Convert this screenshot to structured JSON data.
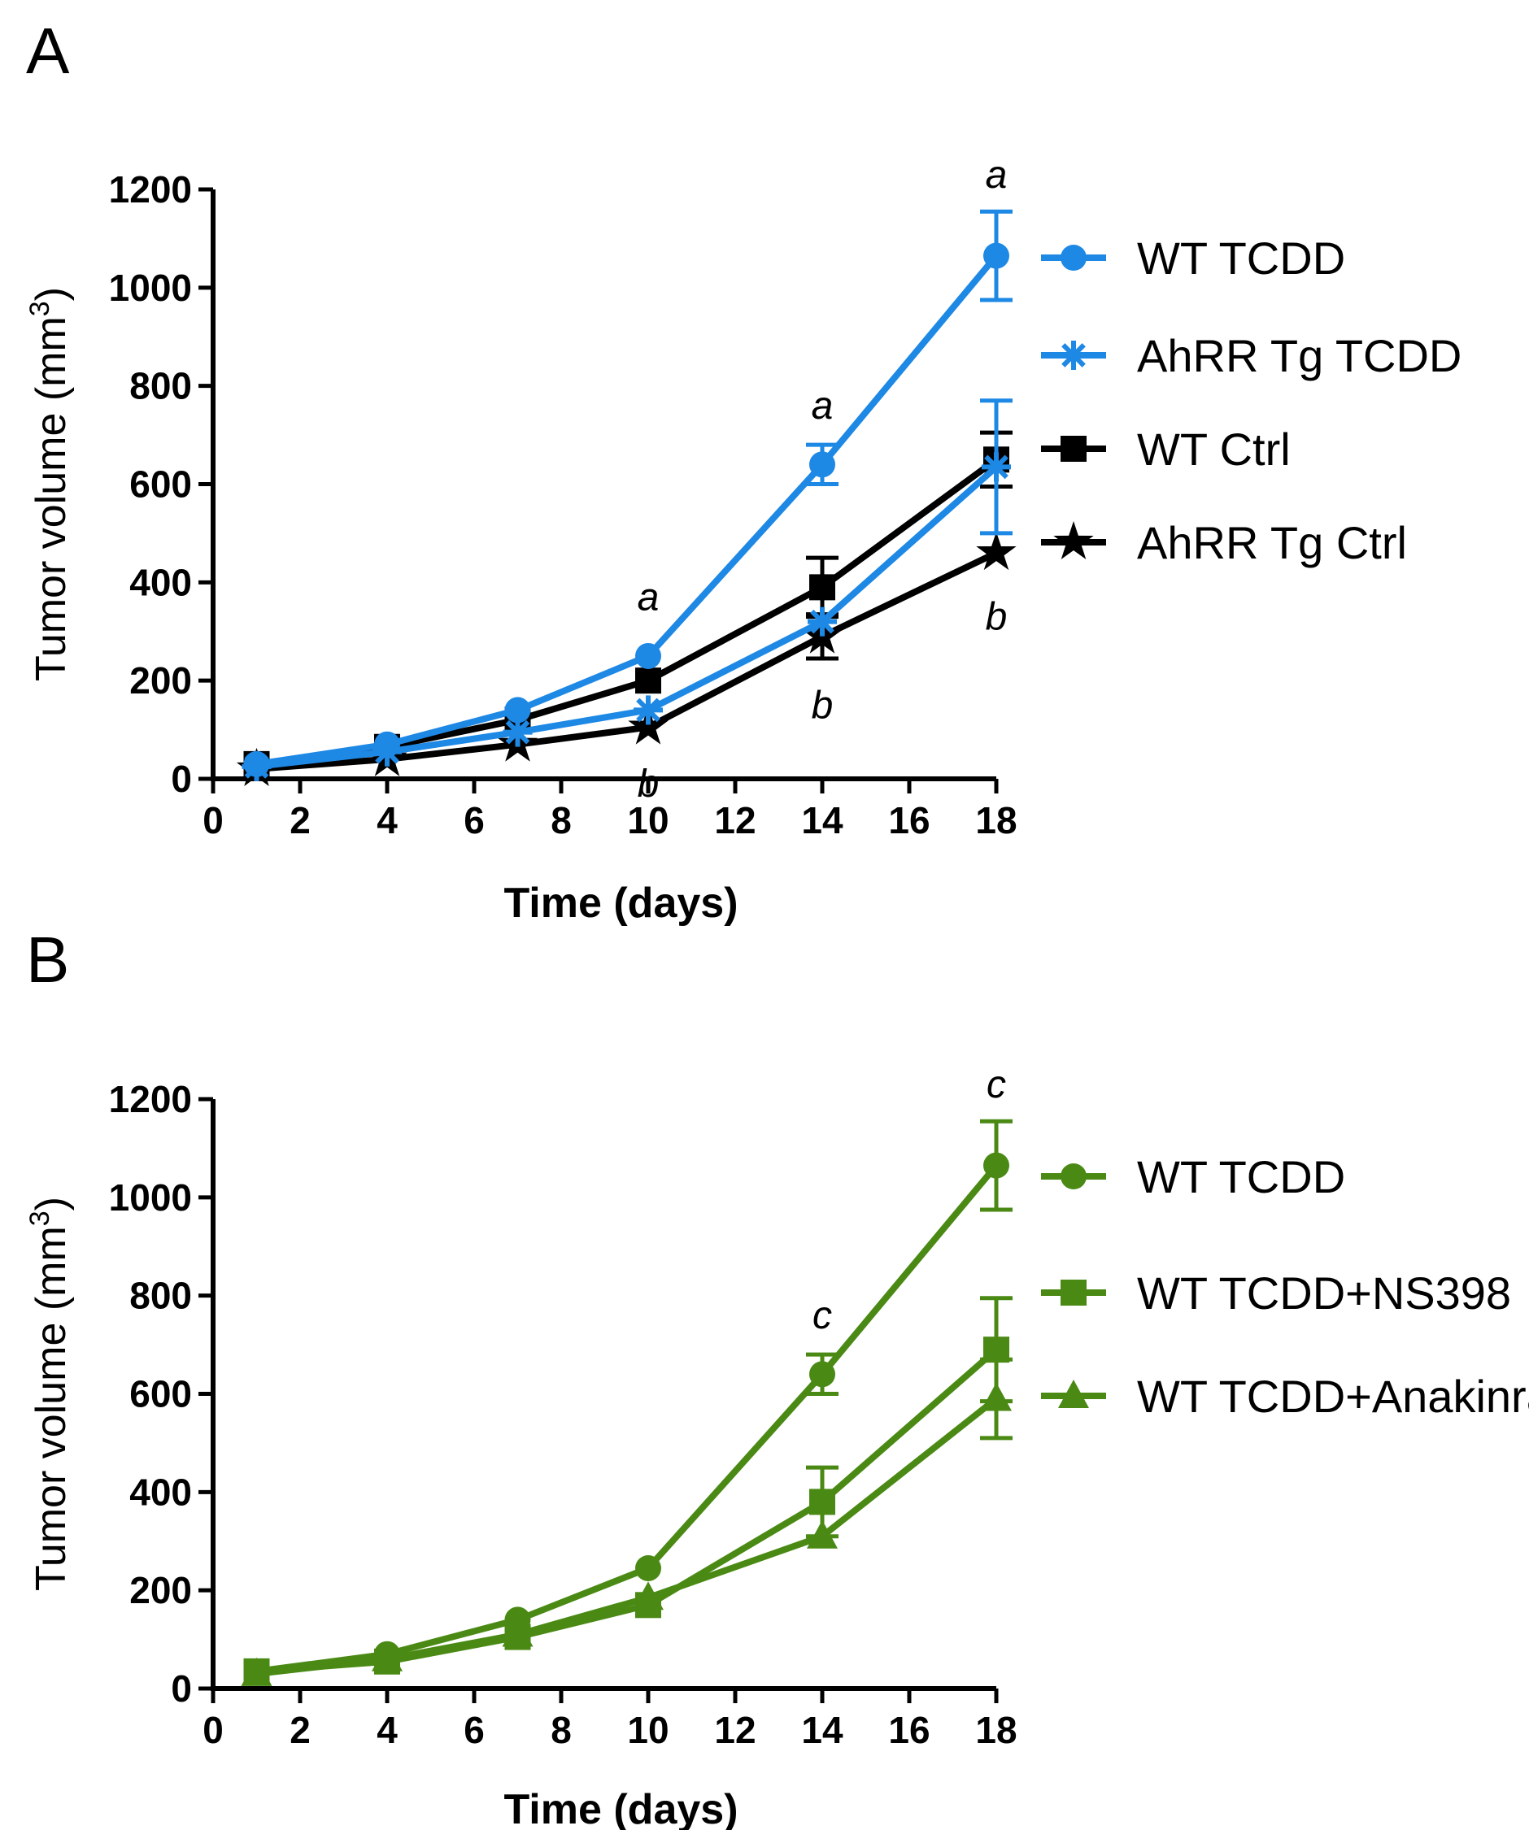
{
  "chart_data": [
    {
      "panel": "A",
      "type": "line",
      "title": "",
      "xlabel": "Time (days)",
      "ylabel": "Tumor volume (mm",
      "ylabel_sup": "3",
      "ylabel_close": ")",
      "xlim": [
        0,
        18
      ],
      "ylim": [
        0,
        1200
      ],
      "xticks": [
        0,
        2,
        4,
        6,
        8,
        10,
        12,
        14,
        16,
        18
      ],
      "yticks": [
        0,
        200,
        400,
        600,
        800,
        1000,
        1200
      ],
      "x": [
        1,
        4,
        7,
        10,
        14,
        18
      ],
      "series": [
        {
          "name": "WT Ctrl",
          "color": "#000000",
          "marker": "square",
          "values": [
            30,
            65,
            120,
            200,
            390,
            650
          ],
          "errors": [
            0,
            0,
            0,
            0,
            60,
            55
          ]
        },
        {
          "name": "AhRR Tg Ctrl",
          "color": "#000000",
          "marker": "star",
          "values": [
            20,
            40,
            70,
            105,
            290,
            460
          ],
          "errors": [
            0,
            0,
            0,
            0,
            45,
            0
          ]
        },
        {
          "name": "WT TCDD",
          "color": "#1e88e5",
          "marker": "circle",
          "values": [
            30,
            70,
            140,
            250,
            640,
            1065
          ],
          "errors": [
            0,
            0,
            0,
            0,
            40,
            90
          ]
        },
        {
          "name": "AhRR Tg TCDD",
          "color": "#1e88e5",
          "marker": "asterisk",
          "values": [
            25,
            55,
            95,
            140,
            320,
            635
          ],
          "errors": [
            0,
            0,
            0,
            0,
            0,
            135
          ]
        }
      ],
      "legend_order": [
        "WT TCDD",
        "AhRR Tg TCDD",
        "WT Ctrl",
        "AhRR Tg Ctrl"
      ],
      "annotations": [
        {
          "text": "a",
          "x": 10,
          "y": 370
        },
        {
          "text": "a",
          "x": 14,
          "y": 760
        },
        {
          "text": "a",
          "x": 18,
          "y": 1230
        },
        {
          "text": "b",
          "x": 10,
          "y": -10
        },
        {
          "text": "b",
          "x": 14,
          "y": 150
        },
        {
          "text": "b",
          "x": 18,
          "y": 330
        }
      ]
    },
    {
      "panel": "B",
      "type": "line",
      "title": "",
      "xlabel": "Time (days)",
      "ylabel": "Tumor volume  (mm",
      "ylabel_sup": "3",
      "ylabel_close": ")",
      "xlim": [
        0,
        18
      ],
      "ylim": [
        0,
        1200
      ],
      "xticks": [
        0,
        2,
        4,
        6,
        8,
        10,
        12,
        14,
        16,
        18
      ],
      "yticks": [
        0,
        200,
        400,
        600,
        800,
        1000,
        1200
      ],
      "x": [
        1,
        4,
        7,
        10,
        14,
        18
      ],
      "series": [
        {
          "name": "WT TCDD",
          "color": "#4a8a14",
          "marker": "circle",
          "values": [
            35,
            70,
            140,
            245,
            640,
            1065
          ],
          "errors": [
            0,
            0,
            0,
            0,
            40,
            90
          ]
        },
        {
          "name": "WT TCDD+NS398",
          "color": "#4a8a14",
          "marker": "square",
          "values": [
            35,
            55,
            105,
            170,
            380,
            690
          ],
          "errors": [
            0,
            0,
            0,
            0,
            70,
            105
          ]
        },
        {
          "name": "WT TCDD+Anakinra",
          "color": "#4a8a14",
          "marker": "triangle",
          "values": [
            30,
            60,
            110,
            185,
            310,
            590
          ],
          "errors": [
            0,
            0,
            0,
            0,
            0,
            80
          ]
        }
      ],
      "legend_order": [
        "WT TCDD",
        "WT TCDD+NS398",
        "WT TCDD+Anakinra"
      ],
      "annotations": [
        {
          "text": "c",
          "x": 14,
          "y": 760
        },
        {
          "text": "c",
          "x": 18,
          "y": 1230
        }
      ]
    }
  ]
}
